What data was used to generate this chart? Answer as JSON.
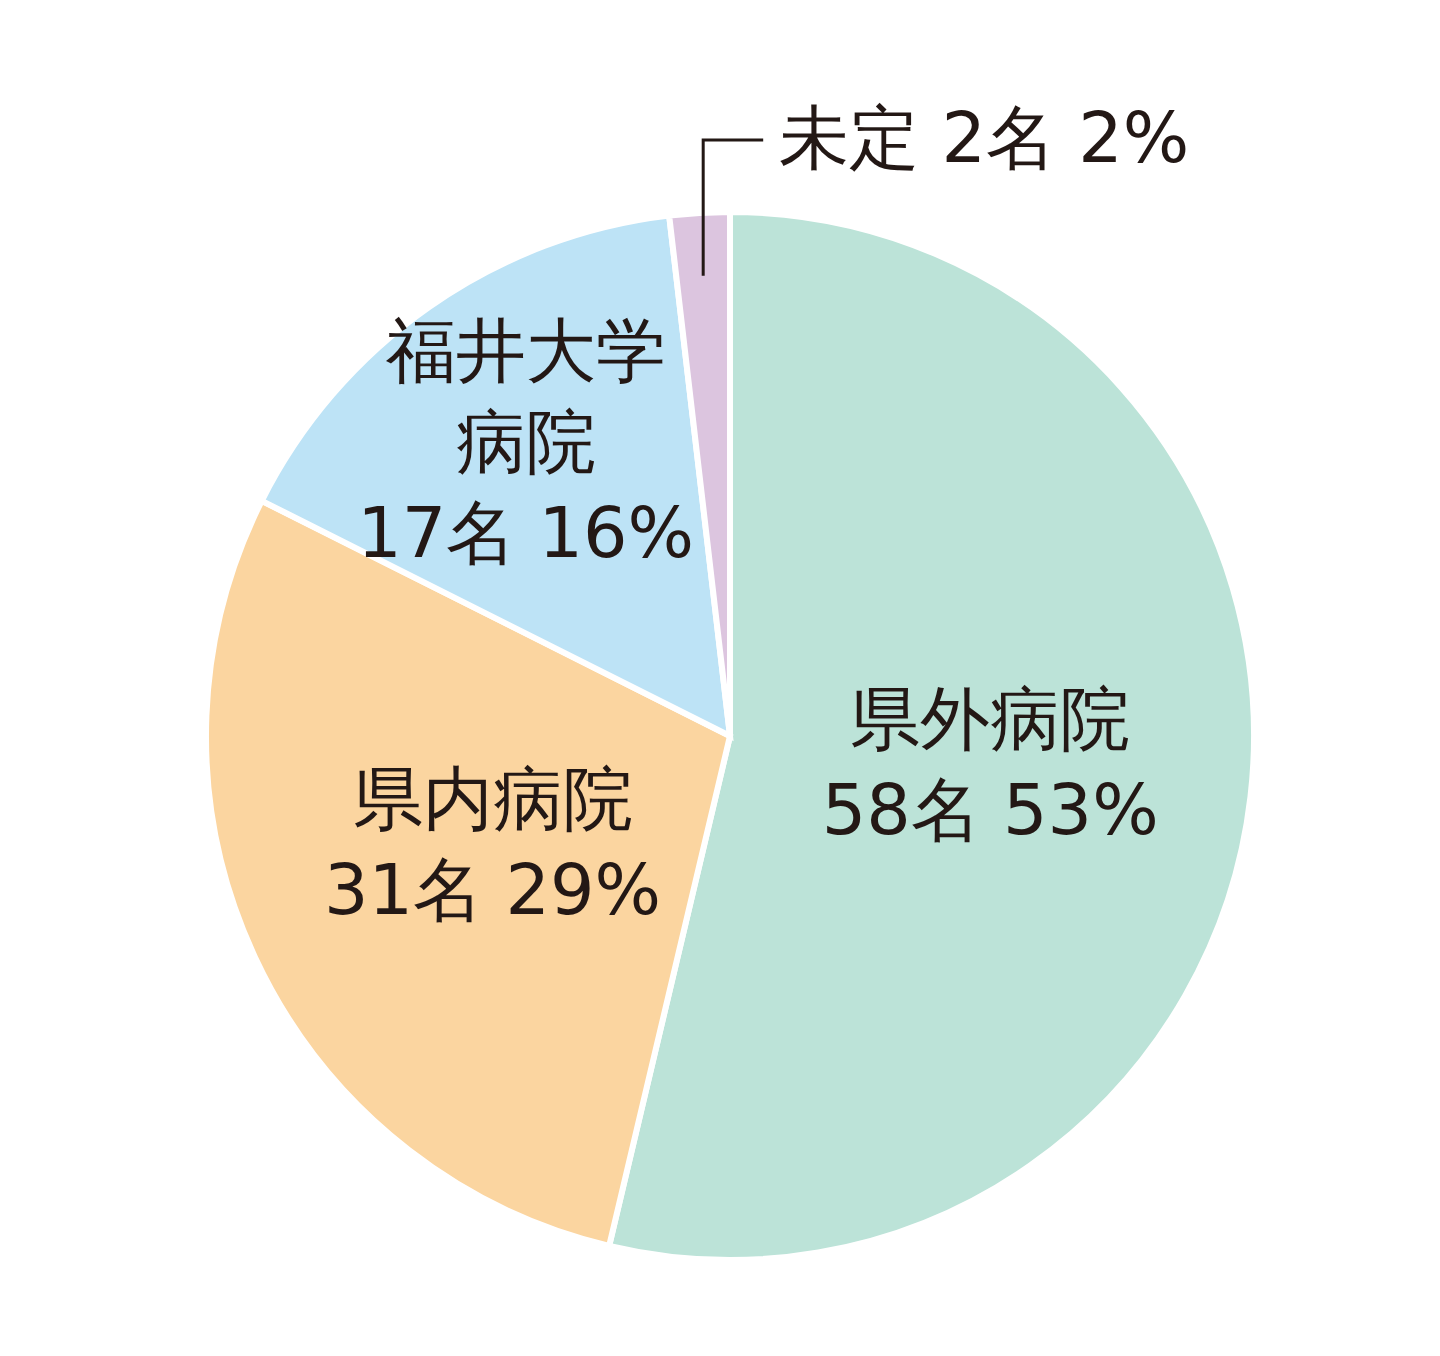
{
  "chart_data": {
    "type": "pie",
    "categories": [
      "県外病院",
      "県内病院",
      "福井大学病院",
      "未定"
    ],
    "values": [
      58,
      31,
      17,
      2
    ],
    "value_labels": [
      "58名 53%",
      "31名 29%",
      "17名 16%",
      "2名 2%"
    ],
    "colors": [
      "#bce3d8",
      "#fbd5a0",
      "#bde3f6",
      "#dcc5df"
    ],
    "legend": false
  }
}
